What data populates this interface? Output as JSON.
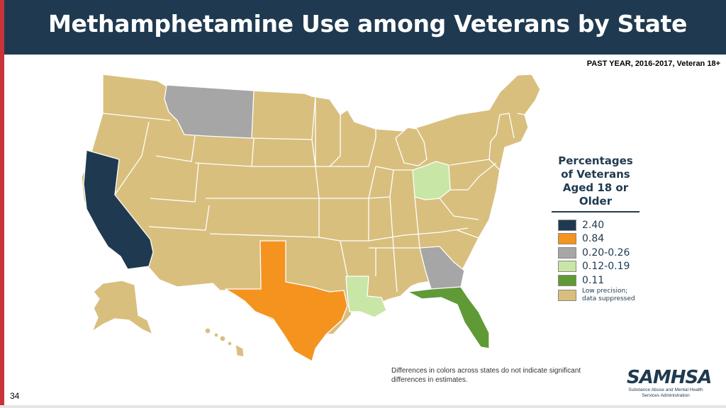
{
  "slide": {
    "title": "Methamphetamine Use among Veterans by State",
    "subtitle": "PAST YEAR, 2016-2017,  Veteran 18+",
    "page_number": "34",
    "note": "Differences in colors across states do not indicate significant differences in estimates."
  },
  "legend": {
    "title": "Percentages of Veterans Aged 18 or Older",
    "items": [
      {
        "label": "2.40",
        "color": "#1f3a50"
      },
      {
        "label": "0.84",
        "color": "#f5931f"
      },
      {
        "label": "0.20-0.26",
        "color": "#a6a6a6"
      },
      {
        "label": "0.12-0.19",
        "color": "#c8e6a5"
      },
      {
        "label": "0.11",
        "color": "#5f9a36"
      },
      {
        "label": "Low precision; data suppressed",
        "color": "#d9bf7e"
      }
    ]
  },
  "states": {
    "California": "2.40",
    "Texas": "0.84",
    "Montana": "0.20-0.26",
    "Georgia": "0.20-0.26",
    "Ohio": "0.12-0.19",
    "Louisiana": "0.12-0.19",
    "Florida": "0.11",
    "All other states": "Low precision; data suppressed"
  },
  "logo": {
    "name": "SAMHSA",
    "subtitle": "Substance Abuse and Mental Health Services Administration"
  }
}
